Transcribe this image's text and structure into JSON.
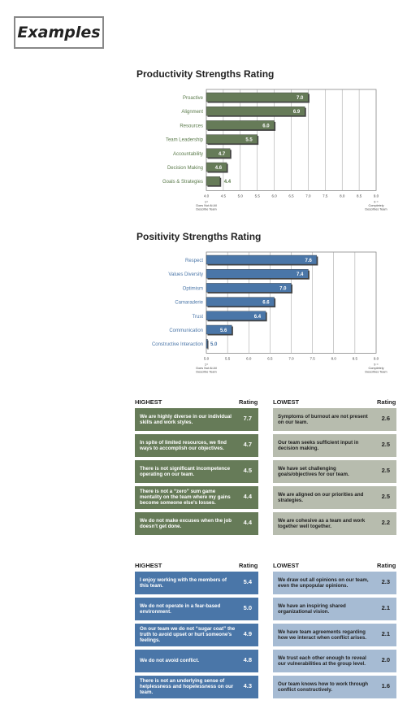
{
  "header": {
    "label": "Examples"
  },
  "colors": {
    "green": "#667b58",
    "green_light": "#b7bcae",
    "blue": "#4a76a8",
    "blue_light": "#a6bbd3",
    "green_text": "#5a7a4a",
    "blue_text": "#4a76a8"
  },
  "chart_data": [
    {
      "type": "bar",
      "orientation": "horizontal",
      "title": "Productivity Strengths Rating",
      "categories": [
        "Proactive",
        "Alignment",
        "Resources",
        "Team Leadership",
        "Accountability",
        "Decision Making",
        "Goals & Strategies"
      ],
      "values": [
        7.0,
        6.9,
        6.0,
        5.5,
        4.7,
        4.6,
        4.4
      ],
      "value_labels": [
        "7.0",
        "6.9",
        "6.0",
        "5.5",
        "4.7",
        "4.6",
        "4.4"
      ],
      "xlim": [
        4.0,
        9.0
      ],
      "xticks": [
        "4.0",
        "4.5",
        "5.0",
        "5.5",
        "6.0",
        "6.5",
        "7.0",
        "7.5",
        "8.0",
        "8.5",
        "9.0"
      ],
      "left_note": [
        "1=",
        "Does Not At All",
        "Describe Team"
      ],
      "right_note": [
        "9 =",
        "Completely",
        "Describes Team"
      ],
      "grid": true
    },
    {
      "type": "bar",
      "orientation": "horizontal",
      "title": "Positivity Strengths Rating",
      "categories": [
        "Respect",
        "Values Diversity",
        "Optimism",
        "Camaraderie",
        "Trust",
        "Communication",
        "Constructive Interaction"
      ],
      "values": [
        7.6,
        7.4,
        7.0,
        6.6,
        6.4,
        5.6,
        5.0
      ],
      "value_labels": [
        "7.6",
        "7.4",
        "7.0",
        "6.6",
        "6.4",
        "5.6",
        "5.0"
      ],
      "xlim": [
        5.0,
        9.0
      ],
      "xticks": [
        "5.0",
        "5.5",
        "6.0",
        "6.5",
        "7.0",
        "7.5",
        "8.0",
        "8.5",
        "9.0"
      ],
      "left_note": [
        "1=",
        "Does Not At All",
        "Describe Team"
      ],
      "right_note": [
        "9 =",
        "Completely",
        "Describes Team"
      ],
      "grid": true
    }
  ],
  "tables": {
    "productivity": {
      "highest_header": "HIGHEST",
      "lowest_header": "LOWEST",
      "rating_header": "Rating",
      "highest": [
        {
          "text": "We are highly diverse in our individual skills and work styles.",
          "rating": "7.7"
        },
        {
          "text": "In spite of limited resources, we find ways to accomplish our objectives.",
          "rating": "4.7"
        },
        {
          "text": "There is not significant incompetence operating on our team.",
          "rating": "4.5"
        },
        {
          "text": "There is not a “zero” sum game mentality on the team where my gains become someone else’s losses.",
          "rating": "4.4"
        },
        {
          "text": "We do not make excuses when the job doesn’t get done.",
          "rating": "4.4"
        }
      ],
      "lowest": [
        {
          "text": "Symptoms of burnout are not present on our team.",
          "rating": "2.6"
        },
        {
          "text": "Our team seeks sufficient input in decision making.",
          "rating": "2.5"
        },
        {
          "text": "We have set challenging goals/objectives for our team.",
          "rating": "2.5"
        },
        {
          "text": "We are aligned on our priorities and strategies.",
          "rating": "2.5"
        },
        {
          "text": "We are cohesive as a team and work together well together.",
          "rating": "2.2"
        }
      ]
    },
    "positivity": {
      "highest_header": "HIGHEST",
      "lowest_header": "LOWEST",
      "rating_header": "Rating",
      "highest": [
        {
          "text": "I enjoy working with the members of this team.",
          "rating": "5.4"
        },
        {
          "text": "We do not operate in a fear-based environment.",
          "rating": "5.0"
        },
        {
          "text": "On our team we do not “sugar coat” the truth to avoid upset or hurt someone’s feelings.",
          "rating": "4.9"
        },
        {
          "text": "We do not avoid conflict.",
          "rating": "4.8"
        },
        {
          "text": "There is not an underlying sense of helplessness and hopelessness on our team.",
          "rating": "4.3"
        }
      ],
      "lowest": [
        {
          "text": "We draw out all opinions on our team, even the unpopular opinions.",
          "rating": "2.3"
        },
        {
          "text": "We have an inspiring shared organizational vision.",
          "rating": "2.1"
        },
        {
          "text": "We have team agreements regarding how we interact when conflict arises.",
          "rating": "2.1"
        },
        {
          "text": "We trust each other enough to reveal our vulnerabilities at the group level.",
          "rating": "2.0"
        },
        {
          "text": "Our team knows how to work through conflict constructively.",
          "rating": "1.6"
        }
      ]
    }
  }
}
